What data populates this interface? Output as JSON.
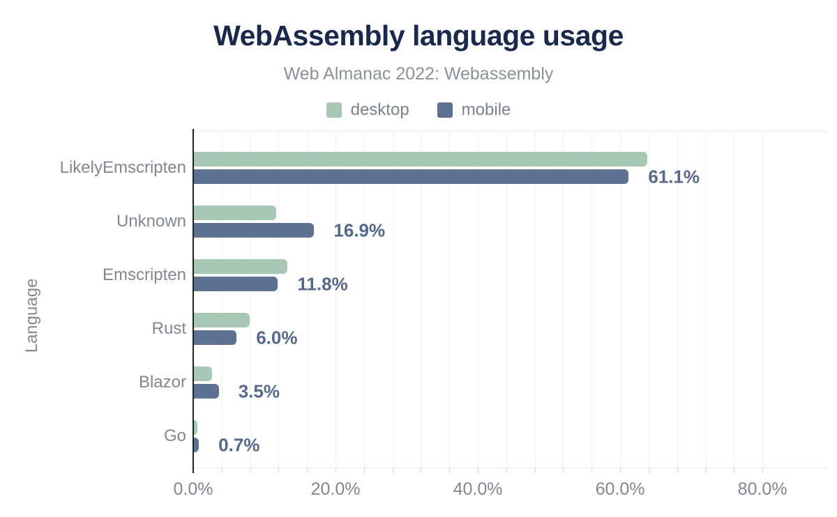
{
  "header": {
    "title": "WebAssembly language usage",
    "subtitle": "Web Almanac 2022: Webassembly"
  },
  "chart_data": {
    "type": "bar",
    "orientation": "horizontal",
    "title": "WebAssembly language usage",
    "subtitle": "Web Almanac 2022: Webassembly",
    "xlabel": "",
    "ylabel": "Language",
    "categories": [
      "LikelyEmscripten",
      "Unknown",
      "Emscripten",
      "Rust",
      "Blazor",
      "Go"
    ],
    "series": [
      {
        "name": "desktop",
        "color": "#a7c8b5",
        "values": [
          63.7,
          11.6,
          13.1,
          7.8,
          2.5,
          0.5
        ]
      },
      {
        "name": "mobile",
        "color": "#5e7191",
        "values": [
          61.1,
          16.9,
          11.8,
          6.0,
          3.5,
          0.7
        ]
      }
    ],
    "data_labels": [
      "61.1%",
      "16.9%",
      "11.8%",
      "6.0%",
      "3.5%",
      "0.7%"
    ],
    "data_labels_on_series": "mobile",
    "x_ticks": [
      {
        "value": 0,
        "label": "0.0%"
      },
      {
        "value": 20,
        "label": "20.0%"
      },
      {
        "value": 40,
        "label": "40.0%"
      },
      {
        "value": 60,
        "label": "60.0%"
      },
      {
        "value": 80,
        "label": "80.0%"
      }
    ],
    "xlim": [
      0,
      89.3
    ],
    "minor_grid_step": 4,
    "grid": true,
    "legend_position": "top",
    "colors": {
      "title": "#18294d",
      "subtitle": "#8b9199",
      "legend_text": "#7b828c",
      "axis_text": "#82878f",
      "value_label": "#54688e",
      "gridline": "#f0f0f0",
      "plot_border": "#ececec",
      "axis_line": "#1f1f1f",
      "background": "#ffffff"
    }
  }
}
